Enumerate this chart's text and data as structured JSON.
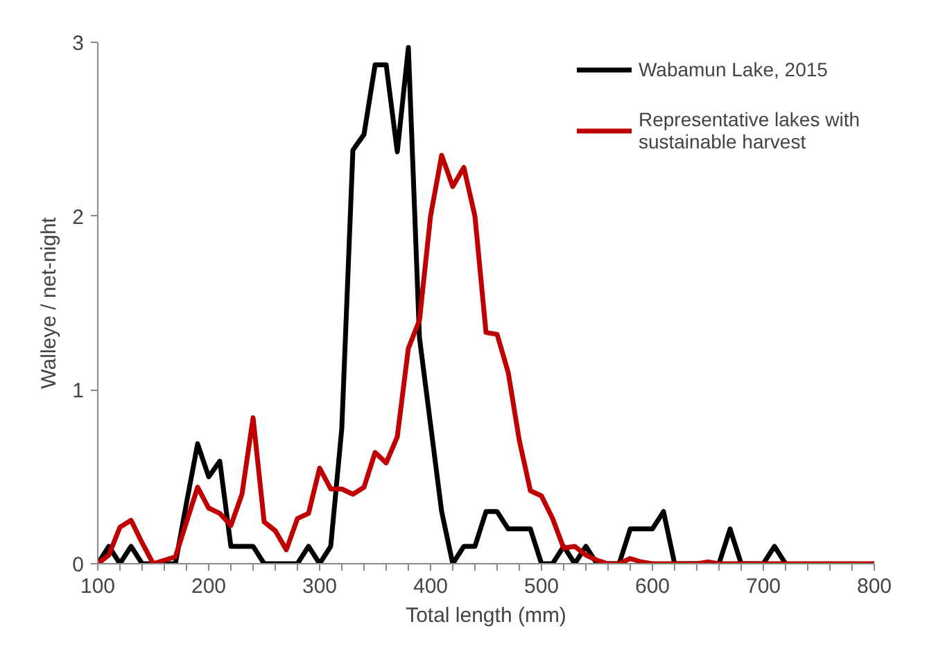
{
  "chart_data": {
    "type": "line",
    "xlabel": "Total length (mm)",
    "ylabel": "Walleye / net-night",
    "xlim": [
      100,
      800
    ],
    "ylim": [
      0,
      3
    ],
    "xticks": [
      100,
      {
        "value": 120,
        "label": null
      },
      {
        "value": 140,
        "label": null
      },
      {
        "value": 160,
        "label": null
      },
      {
        "value": 180,
        "label": null
      },
      200,
      {
        "value": 220,
        "label": null
      },
      {
        "value": 240,
        "label": null
      },
      {
        "value": 260,
        "label": null
      },
      {
        "value": 280,
        "label": null
      },
      300,
      {
        "value": 320,
        "label": null
      },
      {
        "value": 340,
        "label": null
      },
      {
        "value": 360,
        "label": null
      },
      {
        "value": 380,
        "label": null
      },
      400,
      {
        "value": 420,
        "label": null
      },
      {
        "value": 440,
        "label": null
      },
      {
        "value": 460,
        "label": null
      },
      {
        "value": 480,
        "label": null
      },
      500,
      {
        "value": 520,
        "label": null
      },
      {
        "value": 540,
        "label": null
      },
      {
        "value": 560,
        "label": null
      },
      {
        "value": 580,
        "label": null
      },
      600,
      {
        "value": 620,
        "label": null
      },
      {
        "value": 640,
        "label": null
      },
      {
        "value": 660,
        "label": null
      },
      {
        "value": 680,
        "label": null
      },
      700,
      {
        "value": 720,
        "label": null
      },
      {
        "value": 740,
        "label": null
      },
      {
        "value": 760,
        "label": null
      },
      {
        "value": 780,
        "label": null
      },
      800
    ],
    "yticks": [
      0,
      1,
      2,
      3
    ],
    "grid": false,
    "legend": "top right",
    "marker": "none",
    "line_style": "solid",
    "series": [
      {
        "name": "Wabamun Lake, 2015",
        "color": "#000000",
        "x": [
          100,
          110,
          120,
          130,
          140,
          150,
          160,
          170,
          180,
          190,
          200,
          210,
          220,
          230,
          240,
          250,
          260,
          270,
          280,
          290,
          300,
          310,
          320,
          330,
          340,
          350,
          360,
          370,
          380,
          390,
          400,
          410,
          420,
          430,
          440,
          450,
          460,
          470,
          480,
          490,
          500,
          510,
          520,
          530,
          540,
          550,
          560,
          570,
          580,
          590,
          600,
          610,
          620,
          630,
          640,
          650,
          660,
          670,
          680,
          690,
          700,
          710,
          720
        ],
        "values": [
          0,
          0.1,
          0,
          0.1,
          0,
          0,
          0,
          0,
          0.35,
          0.69,
          0.5,
          0.59,
          0.1,
          0.1,
          0.1,
          0,
          0,
          0,
          0,
          0.1,
          0,
          0.1,
          0.78,
          2.38,
          2.47,
          2.87,
          2.87,
          2.37,
          2.97,
          1.3,
          0.8,
          0.3,
          0,
          0.1,
          0.1,
          0.3,
          0.3,
          0.2,
          0.2,
          0.2,
          0,
          0,
          0.1,
          0,
          0.1,
          0,
          0,
          0,
          0.2,
          0.2,
          0.2,
          0.3,
          0,
          0,
          0,
          0,
          0,
          0.2,
          0,
          0,
          0,
          0.1,
          0
        ]
      },
      {
        "name": "Representative lakes with sustainable harvest",
        "color": "#c00000",
        "x": [
          100,
          110,
          120,
          130,
          140,
          150,
          160,
          170,
          180,
          190,
          200,
          210,
          220,
          230,
          240,
          250,
          260,
          270,
          280,
          290,
          300,
          310,
          320,
          330,
          340,
          350,
          360,
          370,
          380,
          390,
          400,
          410,
          420,
          430,
          440,
          450,
          460,
          470,
          480,
          490,
          500,
          510,
          520,
          530,
          540,
          550,
          560,
          570,
          580,
          590,
          600,
          610,
          620,
          630,
          640,
          650,
          660,
          670,
          680,
          690,
          700,
          710,
          720,
          730,
          740,
          750,
          760,
          770,
          780,
          790,
          800
        ],
        "values": [
          0,
          0.05,
          0.21,
          0.25,
          0.12,
          0,
          0.02,
          0.04,
          0.24,
          0.44,
          0.32,
          0.29,
          0.22,
          0.4,
          0.84,
          0.24,
          0.19,
          0.08,
          0.26,
          0.29,
          0.55,
          0.43,
          0.43,
          0.4,
          0.44,
          0.64,
          0.58,
          0.73,
          1.24,
          1.4,
          2.0,
          2.35,
          2.17,
          2.28,
          2.0,
          1.33,
          1.32,
          1.1,
          0.71,
          0.42,
          0.39,
          0.26,
          0.09,
          0.1,
          0.05,
          0.02,
          0,
          0,
          0.03,
          0.01,
          0,
          0,
          0,
          0,
          0,
          0.01,
          0,
          0,
          0,
          0,
          0,
          0,
          0,
          0,
          0,
          0,
          0,
          0,
          0,
          0,
          0
        ]
      }
    ]
  }
}
